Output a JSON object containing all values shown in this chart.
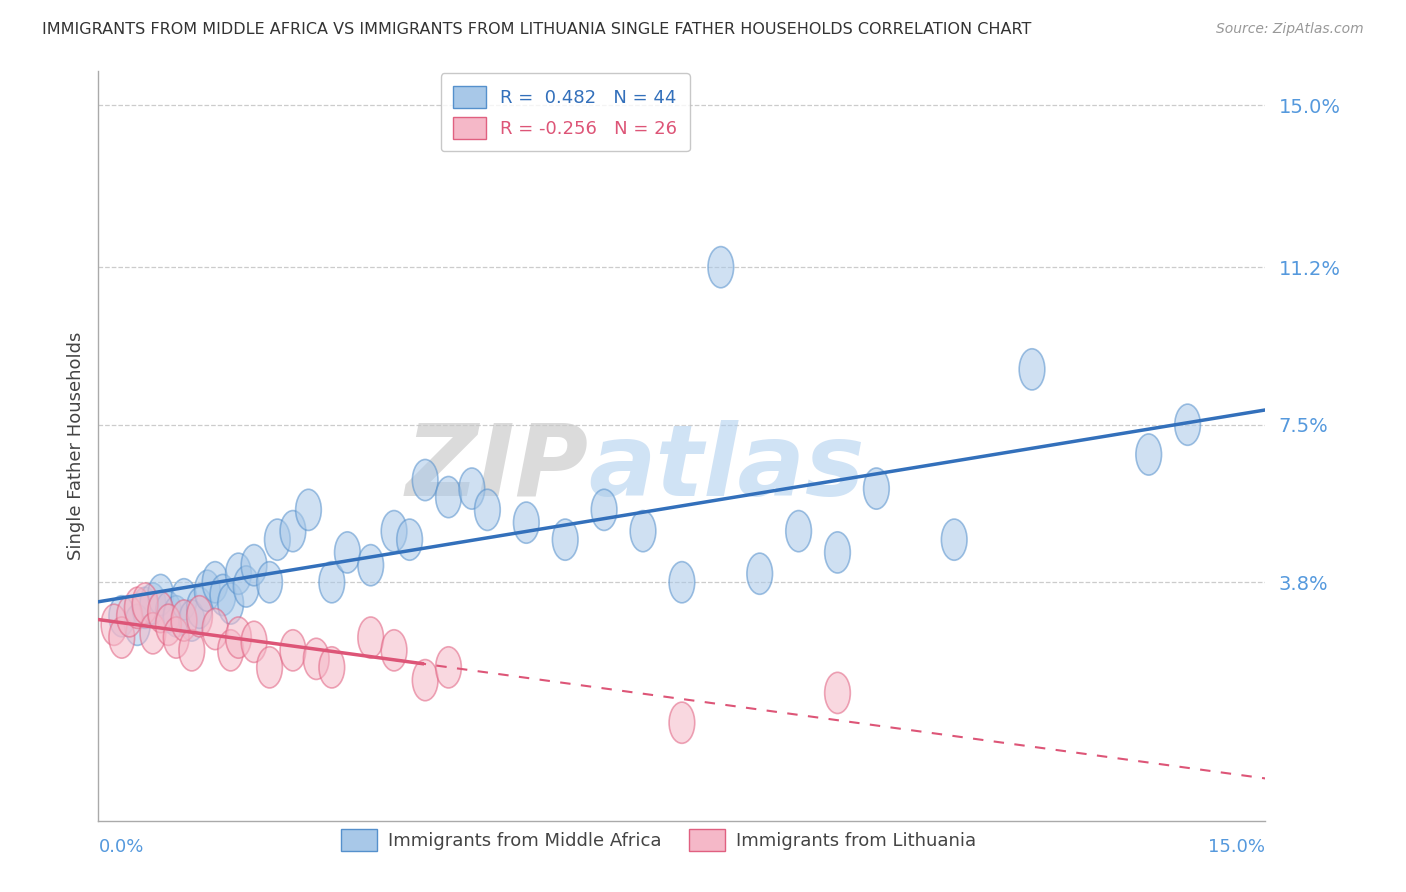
{
  "title": "IMMIGRANTS FROM MIDDLE AFRICA VS IMMIGRANTS FROM LITHUANIA SINGLE FATHER HOUSEHOLDS CORRELATION CHART",
  "source": "Source: ZipAtlas.com",
  "ylabel": "Single Father Households",
  "ytick_values": [
    0.038,
    0.075,
    0.112,
    0.15
  ],
  "ytick_labels": [
    "3.8%",
    "7.5%",
    "11.2%",
    "15.0%"
  ],
  "xmin": 0.0,
  "xmax": 0.15,
  "ymin": -0.018,
  "ymax": 0.158,
  "blue_color": "#a8c8e8",
  "blue_edge_color": "#5590cc",
  "pink_color": "#f5b8c8",
  "pink_edge_color": "#e06080",
  "blue_line_color": "#3370bb",
  "pink_line_color": "#dd5577",
  "axis_color": "#5599dd",
  "grid_color": "#cccccc",
  "title_color": "#333333",
  "source_color": "#999999",
  "legend_r_blue": "R =  0.482   N = 44",
  "legend_r_pink": "R = -0.256   N = 26",
  "legend_label_blue": "Immigrants from Middle Africa",
  "legend_label_pink": "Immigrants from Lithuania",
  "blue_scatter_x": [
    0.003,
    0.005,
    0.006,
    0.007,
    0.008,
    0.009,
    0.01,
    0.011,
    0.012,
    0.013,
    0.014,
    0.015,
    0.016,
    0.017,
    0.018,
    0.019,
    0.02,
    0.022,
    0.023,
    0.025,
    0.027,
    0.03,
    0.032,
    0.035,
    0.038,
    0.04,
    0.042,
    0.045,
    0.048,
    0.05,
    0.055,
    0.06,
    0.065,
    0.07,
    0.075,
    0.08,
    0.085,
    0.09,
    0.095,
    0.1,
    0.11,
    0.12,
    0.135,
    0.14
  ],
  "blue_scatter_y": [
    0.03,
    0.028,
    0.032,
    0.033,
    0.035,
    0.031,
    0.03,
    0.034,
    0.029,
    0.032,
    0.036,
    0.038,
    0.035,
    0.033,
    0.04,
    0.037,
    0.042,
    0.038,
    0.048,
    0.05,
    0.055,
    0.038,
    0.045,
    0.042,
    0.05,
    0.048,
    0.062,
    0.058,
    0.06,
    0.055,
    0.052,
    0.048,
    0.055,
    0.05,
    0.038,
    0.112,
    0.04,
    0.05,
    0.045,
    0.06,
    0.048,
    0.088,
    0.068,
    0.075
  ],
  "pink_scatter_x": [
    0.002,
    0.003,
    0.004,
    0.005,
    0.006,
    0.007,
    0.008,
    0.009,
    0.01,
    0.011,
    0.012,
    0.013,
    0.015,
    0.017,
    0.018,
    0.02,
    0.022,
    0.025,
    0.028,
    0.03,
    0.035,
    0.038,
    0.042,
    0.045,
    0.075,
    0.095
  ],
  "pink_scatter_y": [
    0.028,
    0.025,
    0.03,
    0.032,
    0.033,
    0.026,
    0.031,
    0.028,
    0.025,
    0.029,
    0.022,
    0.03,
    0.027,
    0.022,
    0.025,
    0.024,
    0.018,
    0.022,
    0.02,
    0.018,
    0.025,
    0.022,
    0.015,
    0.018,
    0.005,
    0.012
  ]
}
